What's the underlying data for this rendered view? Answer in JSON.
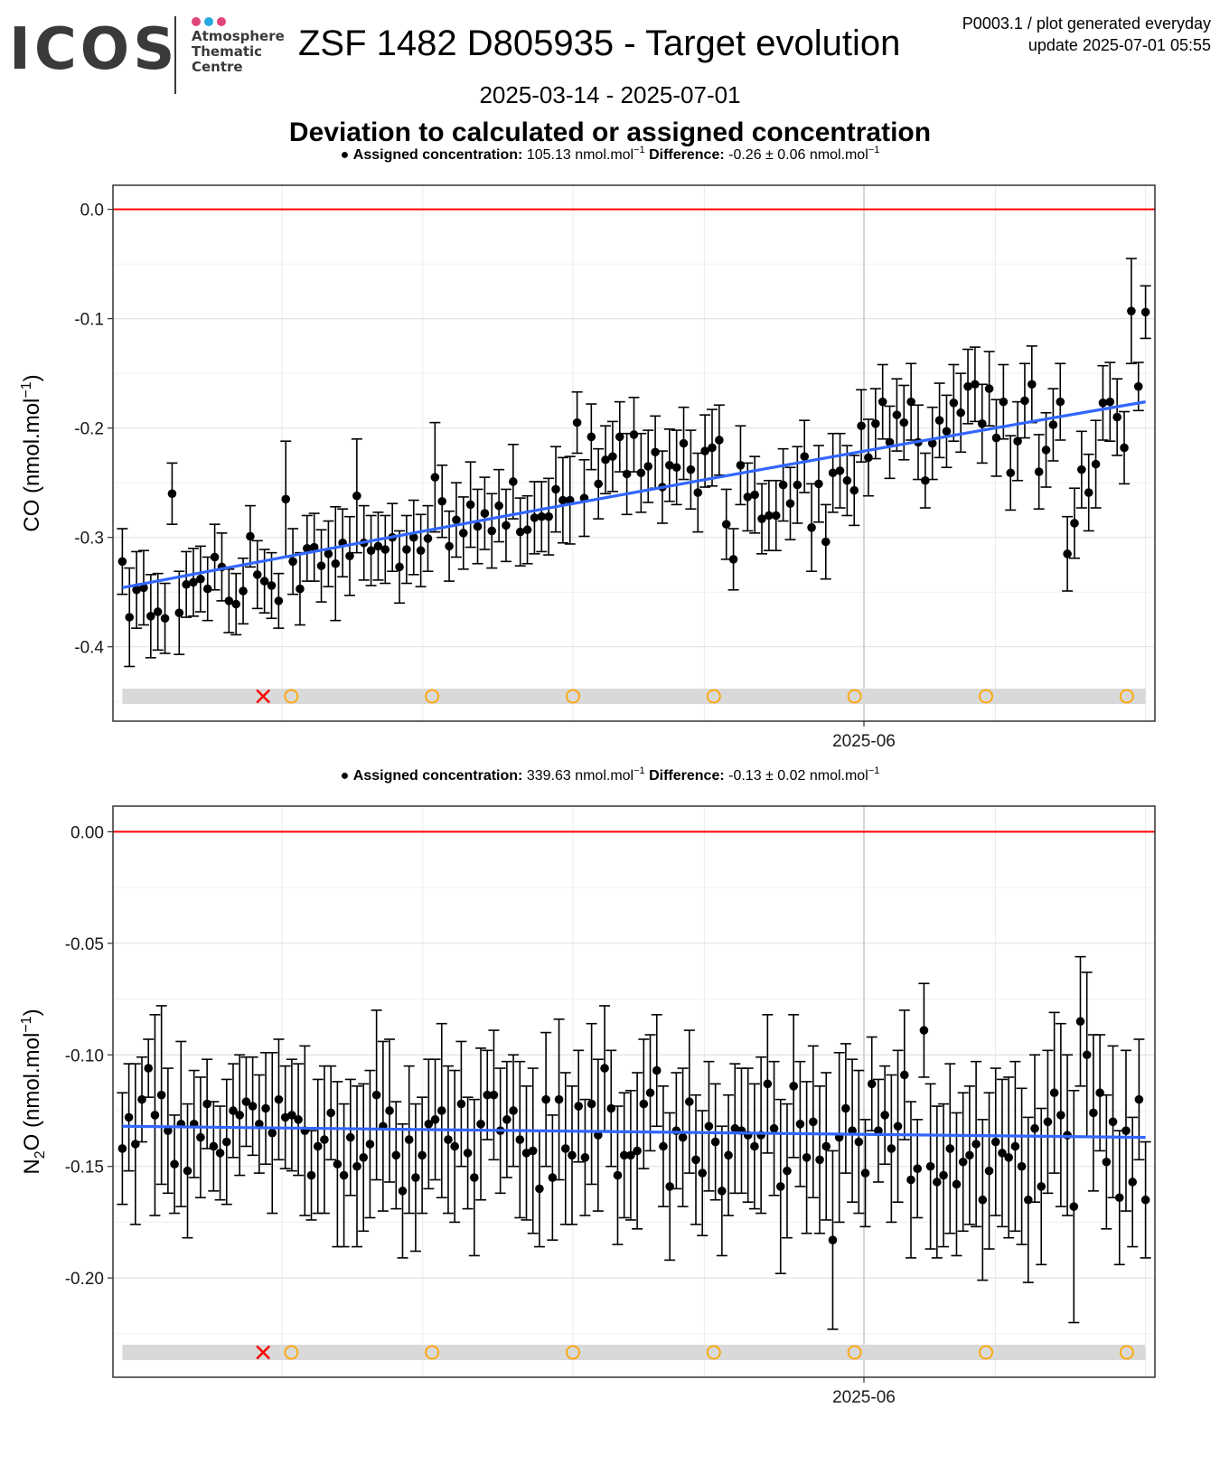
{
  "header": {
    "logo_text": "ICOS",
    "logo_sub": [
      "Atmosphere",
      "Thematic",
      "Centre"
    ],
    "logo_dot_colors": [
      "#e0467c",
      "#28a8e0",
      "#e0467c"
    ],
    "title": "ZSF 1482 D805935 - Target evolution",
    "plot_id": "P0003.1 / plot generated everyday",
    "update": "update  2025-07-01 05:55",
    "date_range": "2025-03-14 - 2025-07-01",
    "subtitle": "Deviation to calculated or assigned concentration"
  },
  "colors": {
    "points": "#000000",
    "trend": "#3366ff",
    "zero_line": "#ff0000",
    "status_band": "#d9d9d9",
    "marker_ok": "#ffa500",
    "marker_bad": "#ff0000"
  },
  "chart_data": [
    {
      "type": "scatter",
      "gas": "CO",
      "legend": {
        "assigned_label": "Assigned concentration:",
        "assigned_value": "105.13 nmol.mol",
        "difference_label": "Difference:",
        "difference_value": "-0.26 ± 0.06 nmol.mol",
        "superscript": "−1"
      },
      "ylabel_prefix": "CO",
      "ylabel_sub": "",
      "ylabel_suffix": " (nmol.mol",
      "ylabel_sup": "−1",
      "ylabel_close": ")",
      "ylim": [
        -0.468,
        0.022
      ],
      "yticks": [
        0.0,
        -0.1,
        -0.2,
        -0.3,
        -0.4
      ],
      "ytick_labels": [
        "0.0",
        "-0.1",
        "-0.2",
        "-0.3",
        "-0.4"
      ],
      "xlim": [
        "2025-03-13",
        "2025-07-02"
      ],
      "xtick": "2025-06-01",
      "xtick_label": "2025-06",
      "trend": {
        "start": -0.346,
        "end": -0.176
      },
      "status_markers": [
        {
          "date": "2025-03-29",
          "kind": "bad"
        },
        {
          "date": "2025-04-01",
          "kind": "ok"
        },
        {
          "date": "2025-04-16",
          "kind": "ok"
        },
        {
          "date": "2025-05-01",
          "kind": "ok"
        },
        {
          "date": "2025-05-16",
          "kind": "ok"
        },
        {
          "date": "2025-05-31",
          "kind": "ok"
        },
        {
          "date": "2025-06-14",
          "kind": "ok"
        },
        {
          "date": "2025-06-29",
          "kind": "ok"
        }
      ],
      "points": [
        -0.322,
        -0.373,
        -0.348,
        -0.346,
        -0.372,
        -0.368,
        -0.374,
        -0.26,
        -0.369,
        -0.343,
        -0.341,
        -0.338,
        -0.347,
        -0.318,
        -0.327,
        -0.358,
        -0.361,
        -0.349,
        -0.299,
        -0.334,
        -0.34,
        -0.344,
        -0.358,
        -0.265,
        -0.322,
        -0.347,
        -0.31,
        -0.309,
        -0.326,
        -0.315,
        -0.324,
        -0.305,
        -0.317,
        -0.262,
        -0.305,
        -0.312,
        -0.308,
        -0.311,
        -0.3,
        -0.327,
        -0.311,
        -0.3,
        -0.312,
        -0.301,
        -0.245,
        -0.267,
        -0.308,
        -0.284,
        -0.296,
        -0.27,
        -0.29,
        -0.278,
        -0.294,
        -0.271,
        -0.289,
        -0.249,
        -0.295,
        -0.293,
        -0.282,
        -0.281,
        -0.281,
        -0.256,
        -0.266,
        -0.266,
        -0.195,
        -0.264,
        -0.208,
        -0.251,
        -0.229,
        -0.226,
        -0.208,
        -0.242,
        -0.206,
        -0.241,
        -0.235,
        -0.222,
        -0.254,
        -0.234,
        -0.236,
        -0.214,
        -0.238,
        -0.259,
        -0.221,
        -0.218,
        -0.211,
        -0.288,
        -0.32,
        -0.234,
        -0.263,
        -0.261,
        -0.283,
        -0.28,
        -0.28,
        -0.252,
        -0.269,
        -0.252,
        -0.226,
        -0.291,
        -0.251,
        -0.304,
        -0.241,
        -0.239,
        -0.248,
        -0.257,
        -0.198,
        -0.227,
        -0.196,
        -0.176,
        -0.213,
        -0.188,
        -0.195,
        -0.176,
        -0.213,
        -0.248,
        -0.214,
        -0.193,
        -0.203,
        -0.177,
        -0.186,
        -0.162,
        -0.16,
        -0.196,
        -0.164,
        -0.209,
        -0.176,
        -0.241,
        -0.212,
        -0.175,
        -0.16,
        -0.24,
        -0.22,
        -0.197,
        -0.176,
        -0.315,
        -0.287,
        -0.238,
        -0.259,
        -0.233,
        -0.177,
        -0.176,
        -0.19,
        -0.218,
        -0.093,
        -0.162,
        -0.094
      ],
      "errors": [
        0.03,
        0.045,
        0.035,
        0.034,
        0.038,
        0.035,
        0.032,
        0.028,
        0.038,
        0.03,
        0.031,
        0.03,
        0.029,
        0.03,
        0.031,
        0.029,
        0.028,
        0.03,
        0.028,
        0.031,
        0.029,
        0.03,
        0.025,
        0.053,
        0.03,
        0.033,
        0.03,
        0.031,
        0.033,
        0.03,
        0.052,
        0.031,
        0.036,
        0.052,
        0.034,
        0.032,
        0.031,
        0.031,
        0.031,
        0.033,
        0.031,
        0.034,
        0.033,
        0.03,
        0.05,
        0.033,
        0.032,
        0.034,
        0.033,
        0.039,
        0.034,
        0.033,
        0.034,
        0.033,
        0.033,
        0.034,
        0.031,
        0.031,
        0.033,
        0.032,
        0.035,
        0.039,
        0.039,
        0.04,
        0.028,
        0.035,
        0.03,
        0.032,
        0.031,
        0.032,
        0.032,
        0.037,
        0.034,
        0.036,
        0.033,
        0.033,
        0.033,
        0.033,
        0.034,
        0.033,
        0.036,
        0.036,
        0.033,
        0.035,
        0.032,
        0.032,
        0.028,
        0.036,
        0.031,
        0.035,
        0.032,
        0.032,
        0.032,
        0.033,
        0.033,
        0.035,
        0.033,
        0.04,
        0.035,
        0.034,
        0.036,
        0.034,
        0.032,
        0.032,
        0.033,
        0.035,
        0.032,
        0.034,
        0.033,
        0.033,
        0.034,
        0.035,
        0.034,
        0.025,
        0.033,
        0.034,
        0.033,
        0.035,
        0.036,
        0.034,
        0.034,
        0.036,
        0.034,
        0.035,
        0.034,
        0.034,
        0.036,
        0.034,
        0.035,
        0.034,
        0.034,
        0.033,
        0.035,
        0.034,
        0.032,
        0.035,
        0.035,
        0.04,
        0.034,
        0.036,
        0.035,
        0.033,
        0.048,
        0.022,
        0.024
      ]
    },
    {
      "type": "scatter",
      "gas": "N2O",
      "legend": {
        "assigned_label": "Assigned concentration:",
        "assigned_value": "339.63 nmol.mol",
        "difference_label": "Difference:",
        "difference_value": "-0.13 ± 0.02 nmol.mol",
        "superscript": "−1"
      },
      "ylabel_prefix": "N",
      "ylabel_sub": "2",
      "ylabel_suffix": "O (nmol.mol",
      "ylabel_sup": "−1",
      "ylabel_close": ")",
      "ylim": [
        -0.2445,
        0.0115
      ],
      "yticks": [
        0.0,
        -0.05,
        -0.1,
        -0.15,
        -0.2
      ],
      "ytick_labels": [
        "0.00",
        "-0.05",
        "-0.10",
        "-0.15",
        "-0.20"
      ],
      "xlim": [
        "2025-03-13",
        "2025-07-02"
      ],
      "xtick": "2025-06-01",
      "xtick_label": "2025-06",
      "trend": {
        "start": -0.132,
        "end": -0.137
      },
      "status_markers": [
        {
          "date": "2025-03-29",
          "kind": "bad"
        },
        {
          "date": "2025-04-01",
          "kind": "ok"
        },
        {
          "date": "2025-04-16",
          "kind": "ok"
        },
        {
          "date": "2025-05-01",
          "kind": "ok"
        },
        {
          "date": "2025-05-16",
          "kind": "ok"
        },
        {
          "date": "2025-05-31",
          "kind": "ok"
        },
        {
          "date": "2025-06-14",
          "kind": "ok"
        },
        {
          "date": "2025-06-29",
          "kind": "ok"
        }
      ],
      "points": [
        -0.142,
        -0.128,
        -0.14,
        -0.12,
        -0.106,
        -0.127,
        -0.118,
        -0.134,
        -0.149,
        -0.131,
        -0.152,
        -0.131,
        -0.137,
        -0.122,
        -0.141,
        -0.144,
        -0.139,
        -0.125,
        -0.127,
        -0.121,
        -0.123,
        -0.131,
        -0.124,
        -0.135,
        -0.12,
        -0.128,
        -0.127,
        -0.129,
        -0.134,
        -0.154,
        -0.141,
        -0.138,
        -0.126,
        -0.149,
        -0.154,
        -0.137,
        -0.15,
        -0.146,
        -0.14,
        -0.118,
        -0.132,
        -0.125,
        -0.145,
        -0.161,
        -0.138,
        -0.155,
        -0.145,
        -0.131,
        -0.129,
        -0.125,
        -0.138,
        -0.141,
        -0.122,
        -0.144,
        -0.155,
        -0.131,
        -0.118,
        -0.118,
        -0.134,
        -0.129,
        -0.125,
        -0.138,
        -0.144,
        -0.143,
        -0.16,
        -0.12,
        -0.155,
        -0.12,
        -0.142,
        -0.145,
        -0.123,
        -0.146,
        -0.122,
        -0.136,
        -0.106,
        -0.124,
        -0.154,
        -0.145,
        -0.145,
        -0.143,
        -0.122,
        -0.117,
        -0.107,
        -0.141,
        -0.159,
        -0.134,
        -0.137,
        -0.121,
        -0.147,
        -0.153,
        -0.132,
        -0.139,
        -0.161,
        -0.145,
        -0.133,
        -0.134,
        -0.136,
        -0.141,
        -0.136,
        -0.113,
        -0.133,
        -0.159,
        -0.152,
        -0.114,
        -0.131,
        -0.146,
        -0.13,
        -0.147,
        -0.141,
        -0.183,
        -0.137,
        -0.124,
        -0.134,
        -0.139,
        -0.153,
        -0.113,
        -0.134,
        -0.127,
        -0.142,
        -0.132,
        -0.109,
        -0.156,
        -0.151,
        -0.089,
        -0.15,
        -0.157,
        -0.154,
        -0.142,
        -0.158,
        -0.148,
        -0.145,
        -0.14,
        -0.165,
        -0.152,
        -0.139,
        -0.144,
        -0.146,
        -0.141,
        -0.15,
        -0.165,
        -0.133,
        -0.159,
        -0.13,
        -0.117,
        -0.127,
        -0.136,
        -0.168,
        -0.085,
        -0.1,
        -0.126,
        -0.117,
        -0.148,
        -0.13,
        -0.164,
        -0.134,
        -0.157,
        -0.12,
        -0.165
      ],
      "errors": [
        0.025,
        0.024,
        0.036,
        0.019,
        0.013,
        0.045,
        0.04,
        0.028,
        0.022,
        0.037,
        0.03,
        0.024,
        0.027,
        0.02,
        0.02,
        0.021,
        0.028,
        0.021,
        0.027,
        0.02,
        0.022,
        0.022,
        0.025,
        0.036,
        0.027,
        0.023,
        0.025,
        0.025,
        0.038,
        0.02,
        0.03,
        0.033,
        0.021,
        0.037,
        0.032,
        0.026,
        0.036,
        0.033,
        0.033,
        0.038,
        0.038,
        0.032,
        0.024,
        0.03,
        0.033,
        0.033,
        0.026,
        0.029,
        0.027,
        0.039,
        0.033,
        0.034,
        0.028,
        0.025,
        0.035,
        0.034,
        0.02,
        0.029,
        0.028,
        0.026,
        0.025,
        0.035,
        0.03,
        0.037,
        0.026,
        0.03,
        0.028,
        0.036,
        0.034,
        0.031,
        0.025,
        0.026,
        0.036,
        0.034,
        0.028,
        0.026,
        0.031,
        0.028,
        0.029,
        0.035,
        0.029,
        0.026,
        0.025,
        0.027,
        0.033,
        0.026,
        0.031,
        0.032,
        0.029,
        0.028,
        0.029,
        0.026,
        0.029,
        0.027,
        0.029,
        0.028,
        0.03,
        0.028,
        0.035,
        0.031,
        0.03,
        0.039,
        0.03,
        0.032,
        0.028,
        0.034,
        0.034,
        0.033,
        0.033,
        0.04,
        0.038,
        0.029,
        0.032,
        0.032,
        0.024,
        0.021,
        0.023,
        0.022,
        0.033,
        0.034,
        0.029,
        0.035,
        0.022,
        0.021,
        0.037,
        0.034,
        0.032,
        0.038,
        0.032,
        0.031,
        0.031,
        0.037,
        0.036,
        0.035,
        0.033,
        0.033,
        0.036,
        0.038,
        0.035,
        0.037,
        0.033,
        0.035,
        0.032,
        0.036,
        0.041,
        0.036,
        0.052,
        0.029,
        0.037,
        0.035,
        0.026,
        0.03,
        0.034,
        0.03,
        0.036,
        0.029,
        0.027,
        0.026
      ]
    }
  ]
}
